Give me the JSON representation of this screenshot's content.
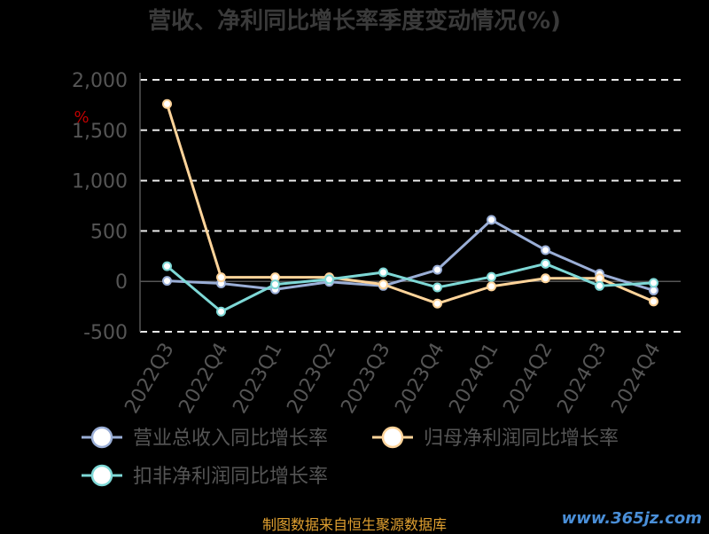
{
  "chart_data": {
    "type": "line",
    "title": "营收、净利同比增长率季度变动情况(%)",
    "ylabel": "%",
    "ylim": [
      -500,
      2000
    ],
    "yticks": [
      2000,
      1500,
      1000,
      500,
      0,
      -500
    ],
    "ytick_labels": [
      "2,000",
      "1,500",
      "1,000",
      "500",
      "0",
      "-500"
    ],
    "categories": [
      "2022Q3",
      "2022Q4",
      "2023Q1",
      "2023Q2",
      "2023Q3",
      "2023Q4",
      "2024Q1",
      "2024Q2",
      "2024Q3",
      "2024Q4"
    ],
    "grid": true,
    "legend_position": "bottom",
    "series": [
      {
        "name": "营业总收入同比增长率",
        "color": "#9aaed6",
        "values": [
          5,
          -20,
          -80,
          -5,
          -45,
          115,
          610,
          310,
          75,
          -90
        ]
      },
      {
        "name": "归母净利润同比增长率",
        "color": "#ffd49a",
        "values": [
          1760,
          40,
          40,
          40,
          -30,
          -220,
          -50,
          30,
          30,
          -200
        ]
      },
      {
        "name": "扣非净利润同比增长率",
        "color": "#7ed8d6",
        "values": [
          150,
          -300,
          -30,
          20,
          90,
          -60,
          45,
          175,
          -45,
          -15
        ]
      }
    ]
  },
  "footer": {
    "source": "制图数据来自恒生聚源数据库",
    "watermark": "www.365jz.com"
  }
}
